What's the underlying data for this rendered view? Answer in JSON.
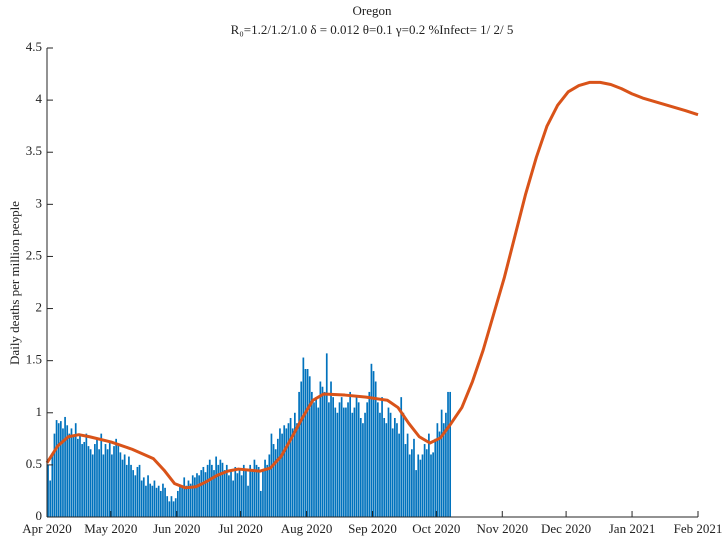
{
  "chart_data": {
    "type": "combo",
    "title": "Oregon",
    "subtitle": "R₀=1.2/1.2/1.0  δ = 0.012  θ=0.1  γ=0.2  %Infect= 1/ 2/ 5",
    "ylabel": "Daily deaths per million people",
    "xlim": [
      0,
      306
    ],
    "xticks": [
      {
        "value": 0,
        "label": "Apr 2020"
      },
      {
        "value": 30,
        "label": "May 2020"
      },
      {
        "value": 61,
        "label": "Jun 2020"
      },
      {
        "value": 91,
        "label": "Jul 2020"
      },
      {
        "value": 122,
        "label": "Aug 2020"
      },
      {
        "value": 153,
        "label": "Sep 2020"
      },
      {
        "value": 183,
        "label": "Oct 2020"
      },
      {
        "value": 214,
        "label": "Nov 2020"
      },
      {
        "value": 244,
        "label": "Dec 2020"
      },
      {
        "value": 275,
        "label": "Jan 2021"
      },
      {
        "value": 306,
        "label": "Feb 2021"
      }
    ],
    "ylim": [
      0,
      4.5
    ],
    "yticks": [
      0,
      0.5,
      1,
      1.5,
      2,
      2.5,
      3,
      3.5,
      4,
      4.5
    ],
    "series": [
      {
        "type": "bar",
        "color": "#0072bd",
        "values": [
          0.5,
          0.35,
          0.6,
          0.8,
          0.93,
          0.9,
          0.92,
          0.85,
          0.96,
          0.88,
          0.8,
          0.85,
          0.78,
          0.9,
          0.75,
          0.8,
          0.7,
          0.72,
          0.8,
          0.68,
          0.65,
          0.6,
          0.7,
          0.75,
          0.65,
          0.8,
          0.6,
          0.7,
          0.65,
          0.72,
          0.6,
          0.68,
          0.75,
          0.7,
          0.62,
          0.55,
          0.6,
          0.5,
          0.58,
          0.5,
          0.45,
          0.4,
          0.48,
          0.5,
          0.35,
          0.38,
          0.3,
          0.4,
          0.32,
          0.3,
          0.35,
          0.28,
          0.3,
          0.25,
          0.32,
          0.28,
          0.2,
          0.15,
          0.2,
          0.15,
          0.18,
          0.25,
          0.3,
          0.3,
          0.38,
          0.3,
          0.35,
          0.32,
          0.4,
          0.38,
          0.42,
          0.4,
          0.45,
          0.48,
          0.43,
          0.5,
          0.55,
          0.5,
          0.45,
          0.58,
          0.5,
          0.55,
          0.52,
          0.45,
          0.5,
          0.4,
          0.45,
          0.35,
          0.48,
          0.42,
          0.45,
          0.4,
          0.5,
          0.45,
          0.3,
          0.5,
          0.45,
          0.55,
          0.5,
          0.48,
          0.25,
          0.45,
          0.55,
          0.5,
          0.6,
          0.8,
          0.7,
          0.65,
          0.75,
          0.85,
          0.8,
          0.88,
          0.85,
          0.9,
          0.95,
          0.85,
          1.0,
          0.9,
          1.2,
          1.3,
          1.53,
          1.42,
          1.42,
          1.35,
          1.2,
          1.1,
          1.15,
          1.05,
          1.3,
          1.25,
          1.2,
          1.57,
          1.1,
          1.3,
          1.15,
          1.05,
          1.0,
          1.1,
          1.15,
          1.05,
          1.05,
          1.1,
          1.2,
          1.0,
          1.05,
          1.15,
          1.1,
          0.95,
          0.9,
          1.0,
          1.1,
          1.2,
          1.47,
          1.4,
          1.3,
          1.1,
          1.0,
          1.15,
          0.95,
          0.9,
          1.05,
          1.0,
          0.85,
          0.95,
          0.9,
          0.8,
          1.15,
          1.0,
          0.7,
          0.8,
          0.6,
          0.65,
          0.75,
          0.45,
          0.6,
          0.55,
          0.6,
          0.7,
          0.65,
          0.8,
          0.6,
          0.62,
          0.75,
          0.9,
          0.82,
          1.03,
          0.9,
          1.0,
          1.2,
          1.2
        ]
      },
      {
        "type": "line",
        "color": "#d95319",
        "x": [
          0,
          5,
          10,
          15,
          20,
          30,
          40,
          50,
          55,
          60,
          65,
          70,
          75,
          80,
          85,
          90,
          95,
          100,
          105,
          110,
          115,
          120,
          125,
          130,
          140,
          150,
          160,
          165,
          170,
          175,
          180,
          185,
          190,
          195,
          200,
          205,
          210,
          215,
          220,
          225,
          230,
          235,
          240,
          245,
          250,
          255,
          260,
          265,
          270,
          275,
          280,
          285,
          290,
          295,
          300,
          306
        ],
        "values": [
          0.52,
          0.68,
          0.77,
          0.79,
          0.77,
          0.72,
          0.65,
          0.56,
          0.45,
          0.32,
          0.28,
          0.29,
          0.34,
          0.4,
          0.44,
          0.46,
          0.45,
          0.44,
          0.47,
          0.58,
          0.76,
          0.95,
          1.12,
          1.18,
          1.17,
          1.15,
          1.12,
          1.05,
          0.9,
          0.77,
          0.71,
          0.76,
          0.9,
          1.05,
          1.3,
          1.6,
          1.95,
          2.3,
          2.7,
          3.1,
          3.45,
          3.75,
          3.95,
          4.08,
          4.14,
          4.17,
          4.17,
          4.15,
          4.11,
          4.06,
          4.02,
          3.99,
          3.96,
          3.93,
          3.9,
          3.86
        ]
      }
    ]
  }
}
